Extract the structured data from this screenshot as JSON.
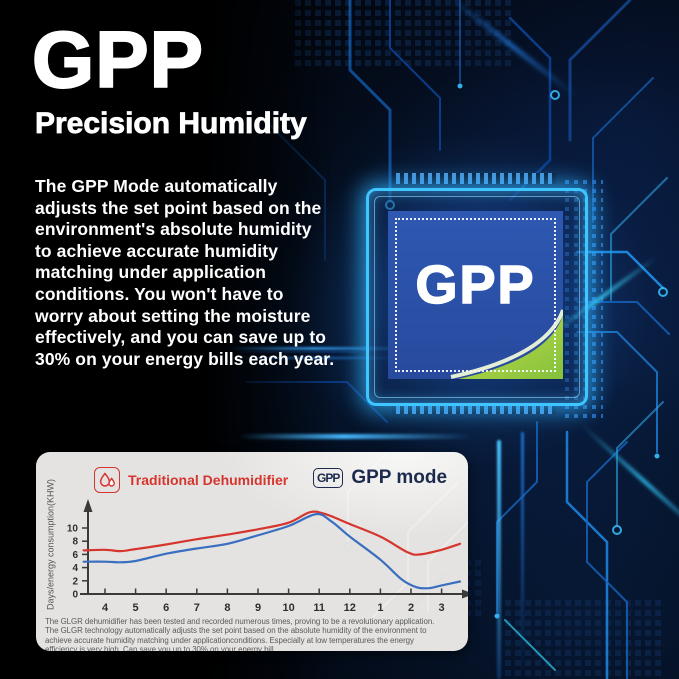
{
  "hero": {
    "title": "GPP",
    "subtitle": "Precision Humidity",
    "body": "The GPP Mode automatically\nadjusts the set point based on the\nenvironment's absolute humidity\nto achieve accurate humidity\nmatching under application\nconditions. You won't have to\nworry about setting the moisture\neffectively, and you can save up to\n30% on your energy bills each year."
  },
  "chip": {
    "label": "GPP"
  },
  "card": {
    "legend_traditional": {
      "label": "Traditional Dehumidifier",
      "color": "#d6352e"
    },
    "legend_gpp": {
      "badge": "GPP",
      "label": "GPP mode",
      "color": "#1c2b4d"
    },
    "caption": "The GLGR dehumidifier has been tested and recorded numerous times, proving to be a revolutionary application.\nThe GLGR technology automatically adjusts the set point based on the absolute humidity of the environment to\nachieve accurate humidity matching under applicationconditions. Especially at low temperatures the energy\nefficiency is very high. Can save you up to 30% on your energy bill."
  },
  "chart_data": {
    "type": "line",
    "title": "",
    "xlabel": "",
    "ylabel": "Days/energy consumption(KHW)",
    "months": [
      "4",
      "5",
      "6",
      "7",
      "8",
      "9",
      "10",
      "11",
      "12",
      "1",
      "2",
      "3"
    ],
    "y_ticks": [
      0,
      2,
      4,
      6,
      8,
      10
    ],
    "ylim": [
      0,
      13
    ],
    "grid": false,
    "legend_position": "top",
    "x_encoding": "x = month index, 0 = month '4' ... 11 = month '3', fractional values are intermediate points",
    "series": [
      {
        "name": "Traditional Dehumidifier",
        "color": "#d6352e",
        "points": [
          [
            -0.7,
            6.6
          ],
          [
            0,
            6.7
          ],
          [
            0.5,
            6.5
          ],
          [
            1,
            6.8
          ],
          [
            2,
            7.5
          ],
          [
            3,
            8.3
          ],
          [
            4,
            9.0
          ],
          [
            5,
            9.8
          ],
          [
            6,
            10.8
          ],
          [
            6.7,
            12.4
          ],
          [
            7.2,
            12.1
          ],
          [
            8,
            10.6
          ],
          [
            9,
            8.7
          ],
          [
            9.9,
            6.3
          ],
          [
            10.3,
            6.0
          ],
          [
            11,
            6.7
          ],
          [
            11.6,
            7.6
          ]
        ]
      },
      {
        "name": "GPP mode",
        "color": "#3a6fc0",
        "points": [
          [
            -0.7,
            4.9
          ],
          [
            0,
            4.9
          ],
          [
            0.5,
            4.8
          ],
          [
            1,
            5.0
          ],
          [
            2,
            6.1
          ],
          [
            3,
            6.9
          ],
          [
            4,
            7.6
          ],
          [
            5,
            8.9
          ],
          [
            6,
            10.3
          ],
          [
            6.9,
            12.1
          ],
          [
            7.4,
            11.0
          ],
          [
            8,
            8.7
          ],
          [
            9,
            5.2
          ],
          [
            9.7,
            2.2
          ],
          [
            10.2,
            1.0
          ],
          [
            10.6,
            0.9
          ],
          [
            11,
            1.3
          ],
          [
            11.6,
            1.9
          ]
        ]
      }
    ]
  }
}
